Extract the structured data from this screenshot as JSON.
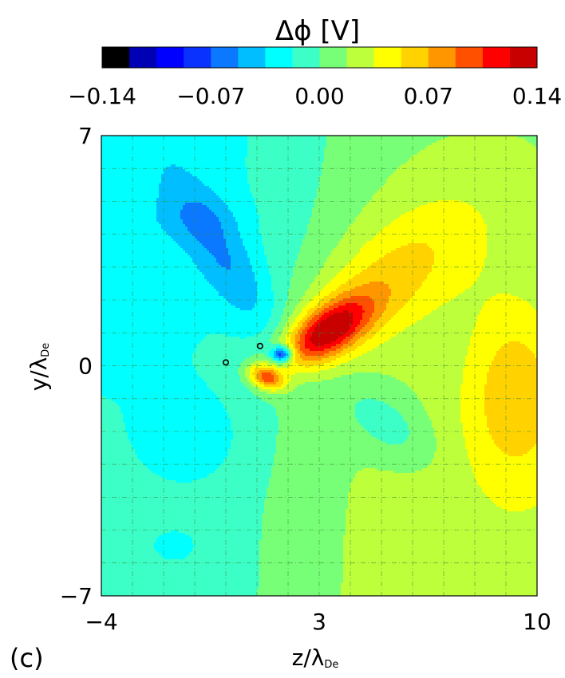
{
  "chart_data": {
    "type": "heatmap",
    "colorbar": {
      "title": "Δϕ  [V]",
      "tick_labels": [
        "−0.14",
        "−0.07",
        "0.00",
        "0.07",
        "0.14"
      ],
      "ticks": [
        -0.14,
        -0.07,
        0.0,
        0.07,
        0.14
      ],
      "range": [
        -0.14,
        0.14
      ],
      "levels": 16,
      "colors": [
        "#000000",
        "#0000B4",
        "#0000FF",
        "#0A32FF",
        "#0A78FF",
        "#00BEFF",
        "#00FFFF",
        "#3CFFC8",
        "#78FF78",
        "#BEFF3C",
        "#FFFF00",
        "#FFD200",
        "#FF9600",
        "#FF5000",
        "#FF0000",
        "#C80000"
      ]
    },
    "xaxis": {
      "label": "z/λ",
      "label_sub": "De",
      "range": [
        -4,
        10
      ],
      "tick_labels": [
        "−4",
        "3",
        "10"
      ],
      "ticks": [
        -4,
        3,
        10
      ]
    },
    "yaxis": {
      "label": "y/λ",
      "label_sub": "De",
      "range": [
        -7,
        7
      ],
      "tick_labels": [
        "−7",
        "0",
        "7"
      ],
      "ticks": [
        -7,
        0,
        7
      ]
    },
    "grid": true,
    "panel_label": "(c)",
    "features": [
      {
        "kind": "maximum",
        "z": 3.0,
        "y": 0.9,
        "value": 0.14
      },
      {
        "kind": "minimum",
        "z": 1.8,
        "y": 0.3,
        "value": -0.1
      },
      {
        "kind": "maximum",
        "z": 1.3,
        "y": -0.3,
        "value": 0.09
      },
      {
        "kind": "minimum",
        "z": 0.0,
        "y": 3.0,
        "value": -0.05
      },
      {
        "kind": "maximum",
        "z": 9.2,
        "y": -0.8,
        "value": 0.06
      },
      {
        "kind": "minimum",
        "z": 1.1,
        "y": 0.6,
        "value": 0.0,
        "marker": "circle"
      },
      {
        "kind": "minimum",
        "z": 0.0,
        "y": 0.1,
        "value": 0.0,
        "marker": "circle"
      }
    ]
  }
}
